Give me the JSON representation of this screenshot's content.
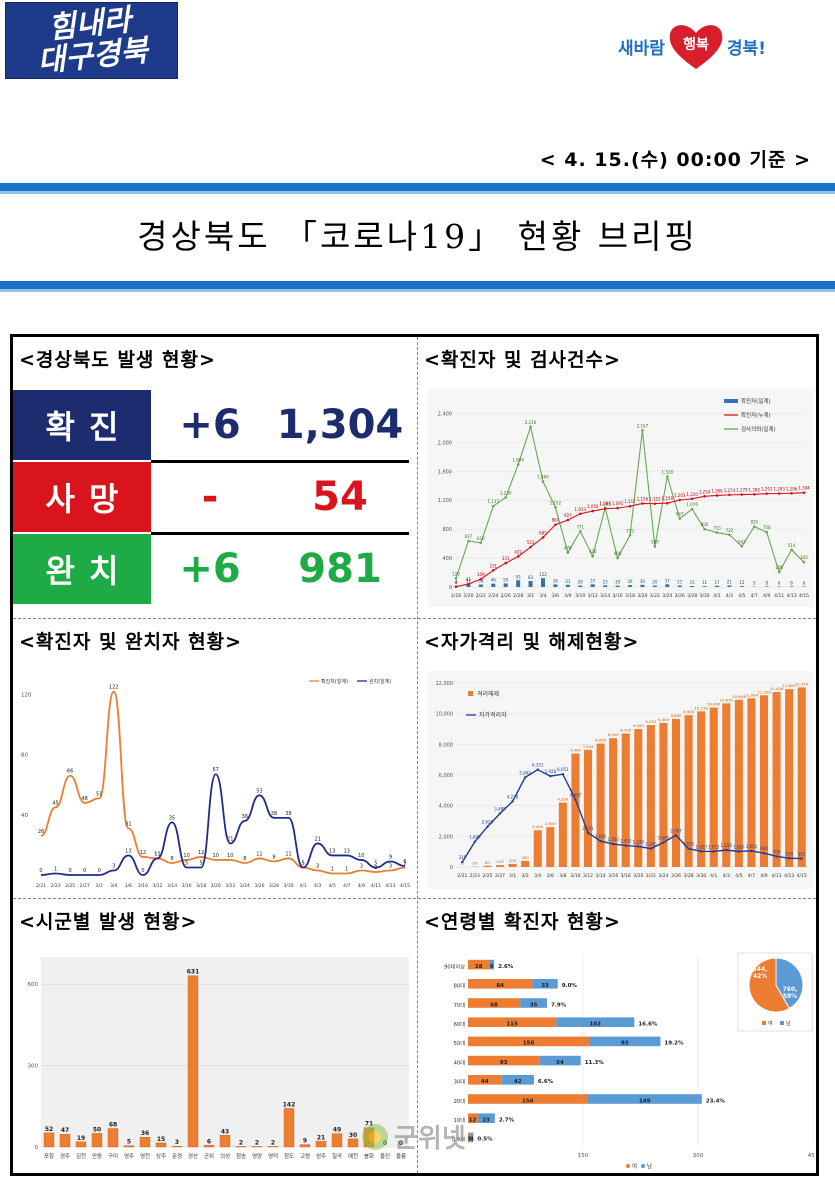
{
  "header": {
    "logo_left_line1": "힘내라",
    "logo_left_line2": "대구경북",
    "logo_right_1": "새바람",
    "logo_right_2": "행복",
    "logo_right_3": "경북!",
    "basis": "< 4. 15.(수) 00:00 기준 >",
    "title": "경상북도 「코로나19」 현황 브리핑"
  },
  "colors": {
    "blue_bar": "#1a73c9",
    "navy": "#1c2c6e",
    "red": "#d9141c",
    "green": "#1eab45",
    "orange": "#ed7d31",
    "lightblue": "#5b9bd5"
  },
  "status": {
    "title": "<경상북도 발생 현황>",
    "rows": [
      {
        "label": "확진",
        "delta": "+6",
        "total": "1,304",
        "color": "#1c2c6e",
        "text_color": "#1c2c6e"
      },
      {
        "label": "사망",
        "delta": "-",
        "total": "54",
        "color": "#d9141c",
        "text_color": "#d9141c"
      },
      {
        "label": "완치",
        "delta": "+6",
        "total": "981",
        "color": "#1eab45",
        "text_color": "#1eab45"
      }
    ]
  },
  "chart_data": [
    {
      "type": "line",
      "title": "<확진자 및 검사건수>",
      "legend": [
        "확진자(일계)",
        "확진자(누계)",
        "검사의뢰(일계)"
      ],
      "x": [
        "2/18",
        "2/20",
        "2/22",
        "2/24",
        "2/26",
        "2/28",
        "3/1",
        "3/4",
        "3/6",
        "3/9",
        "3/10",
        "3/12",
        "3/14",
        "3/16",
        "3/18",
        "3/20",
        "3/22",
        "3/24",
        "3/26",
        "3/28",
        "3/30",
        "4/1",
        "4/3",
        "4/5",
        "4/7",
        "4/9",
        "4/11",
        "4/13",
        "4/15"
      ],
      "ylim": [
        0,
        2600
      ],
      "y_ticks": [
        0,
        400,
        800,
        1200,
        1600,
        2000,
        2400
      ],
      "series": [
        {
          "name": "확진자(누계)",
          "values": [
            4,
            41,
            109,
            231,
            331,
            422,
            553,
            685,
            861,
            927,
            1013,
            1050,
            1083,
            1091,
            1117,
            1156,
            1153,
            1159,
            1203,
            1220,
            1254,
            1266,
            1274,
            1279,
            1282,
            1291,
            1293,
            1296,
            1304
          ]
        },
        {
          "name": "검사의뢰(일계)",
          "values": [
            120,
            637,
            610,
            1117,
            1239,
            1694,
            2216,
            1460,
            1102,
            476,
            771,
            426,
            1096,
            400,
            715,
            2167,
            560,
            1528,
            947,
            1076,
            800,
            753,
            722,
            563,
            835,
            758,
            206,
            514,
            343
          ]
        },
        {
          "name": "확진자(일계)",
          "values": [
            4,
            37,
            34,
            46,
            50,
            93,
            83,
            122,
            36,
            31,
            20,
            37,
            23,
            19,
            26,
            30,
            20,
            37,
            21,
            15,
            11,
            17,
            21,
            12,
            5,
            8,
            6,
            8,
            6
          ]
        }
      ]
    },
    {
      "type": "line",
      "title": "<확진자 및 완치자 현황>",
      "legend": [
        "확진자(일계)",
        "완치(일계)"
      ],
      "x": [
        "2/21",
        "2/23",
        "2/25",
        "2/27",
        "3/2",
        "3/4",
        "3/6",
        "3/10",
        "3/12",
        "3/14",
        "3/16",
        "3/18",
        "3/20",
        "3/22",
        "3/24",
        "3/26",
        "3/28",
        "3/30",
        "4/1",
        "4/3",
        "4/5",
        "4/7",
        "4/9",
        "4/11",
        "4/13",
        "4/15"
      ],
      "ylim": [
        0,
        125
      ],
      "y_ticks": [
        40,
        80,
        120
      ],
      "series": [
        {
          "name": "확진자(일계)",
          "values": [
            26,
            45,
            66,
            48,
            51,
            122,
            31,
            12,
            11,
            8,
            10,
            12,
            10,
            10,
            8,
            11,
            9,
            11,
            5,
            3,
            1,
            1,
            3,
            2,
            3,
            5
          ]
        },
        {
          "name": "완치(일계)",
          "values": [
            0,
            1,
            0,
            0,
            0,
            3,
            13,
            0,
            11,
            35,
            5,
            5,
            67,
            21,
            36,
            53,
            38,
            38,
            5,
            21,
            13,
            13,
            10,
            5,
            9,
            6
          ]
        }
      ]
    },
    {
      "type": "bar",
      "title": "<자가격리 및 해제현황>",
      "legend": [
        "격리해제",
        "자가격리자"
      ],
      "x": [
        "2/21",
        "2/23",
        "2/25",
        "2/27",
        "3/1",
        "3/2",
        "3/4",
        "3/6",
        "3/8",
        "3/10",
        "3/12",
        "3/14",
        "3/16",
        "3/18",
        "3/20",
        "3/22",
        "3/24",
        "3/26",
        "3/28",
        "3/30",
        "4/1",
        "4/3",
        "4/5",
        "4/7",
        "4/9",
        "4/11",
        "4/13",
        "4/15"
      ],
      "ylim": [
        0,
        12000
      ],
      "y_ticks": [
        0,
        2000,
        4000,
        6000,
        8000,
        10000,
        12000
      ],
      "series": [
        {
          "name": "격리해제",
          "values": [
            0,
            20,
            80,
            120,
            200,
            400,
            2400,
            2600,
            4200,
            7400,
            7644,
            8050,
            8400,
            8700,
            9000,
            9255,
            9400,
            9662,
            9900,
            10150,
            10400,
            10670,
            10904,
            11004,
            11200,
            11408,
            11600,
            11714
          ]
        },
        {
          "name": "자가격리자",
          "values": [
            315,
            1649,
            2626,
            3489,
            4278,
            5842,
            6351,
            5928,
            6051,
            4407,
            2231,
            1690,
            1500,
            1400,
            1339,
            1200,
            1600,
            2067,
            1195,
            1020,
            1015,
            1100,
            1019,
            1050,
            900,
            700,
            570,
            551
          ]
        }
      ]
    },
    {
      "type": "bar",
      "title": "<시군별 발생 현황>",
      "categories": [
        "포항",
        "경주",
        "김천",
        "안동",
        "구미",
        "영주",
        "영천",
        "상주",
        "문경",
        "경산",
        "군위",
        "의성",
        "청송",
        "영양",
        "영덕",
        "청도",
        "고령",
        "성주",
        "칠곡",
        "예천",
        "봉화",
        "울진",
        "울릉"
      ],
      "values": [
        52,
        47,
        19,
        50,
        68,
        5,
        36,
        15,
        3,
        631,
        6,
        43,
        2,
        2,
        2,
        142,
        9,
        21,
        49,
        30,
        71,
        0,
        0
      ],
      "ylim": [
        0,
        700
      ],
      "y_ticks": [
        0,
        300,
        600
      ]
    },
    {
      "type": "bar",
      "title": "<연령별 확진자 현황>",
      "categories": [
        "90대이상",
        "80대",
        "70대",
        "60대",
        "50대",
        "40대",
        "30대",
        "20대",
        "10대",
        "0-9세"
      ],
      "series": [
        {
          "name": "여",
          "values": [
            28,
            84,
            68,
            115,
            158,
            93,
            44,
            156,
            12,
            3
          ]
        },
        {
          "name": "남",
          "values": [
            6,
            33,
            35,
            102,
            93,
            54,
            42,
            149,
            23,
            4
          ]
        }
      ],
      "percent": [
        "2.6%",
        "9.0%",
        "7.9%",
        "16.6%",
        "19.2%",
        "11.3%",
        "6.6%",
        "23.4%",
        "2.7%",
        "0.5%"
      ],
      "x_ticks": [
        "150",
        "300",
        "450"
      ],
      "legend": [
        "여",
        "남"
      ],
      "pie": {
        "female": "760, 58%",
        "male": "544, 42%",
        "female_value": 760,
        "male_value": 544
      }
    }
  ],
  "watermark": "군위넷"
}
